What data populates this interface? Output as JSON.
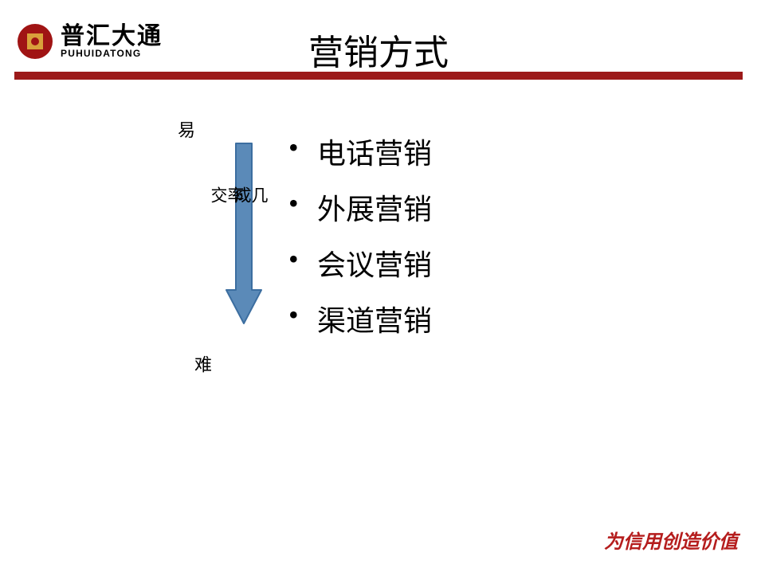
{
  "header": {
    "logo_cn": "普汇大通",
    "logo_en": "PUHUIDATONG",
    "logo_colors": {
      "outer": "#a01414",
      "inner_square": "#d9a13b",
      "center_dot": "#a01414"
    },
    "title": "营销方式",
    "rule_color": "#9c1a1a",
    "rule_height": 10
  },
  "diagram": {
    "label_top": "易",
    "label_bottom": "难",
    "arrow_label_col1": "成交",
    "arrow_label_col2": "几率",
    "arrow": {
      "fill": "#5b8ab8",
      "stroke": "#3c6ea0",
      "stroke_width": 2,
      "shaft_width": 20,
      "total_height": 230,
      "head_width": 48,
      "head_height": 44
    }
  },
  "bullets": [
    "电话营销",
    "外展营销",
    "会议营销",
    "渠道营销"
  ],
  "footer": {
    "text": "为信用创造价值",
    "color": "#b51d1d"
  },
  "bullet_fontsize": 36,
  "title_fontsize": 44
}
